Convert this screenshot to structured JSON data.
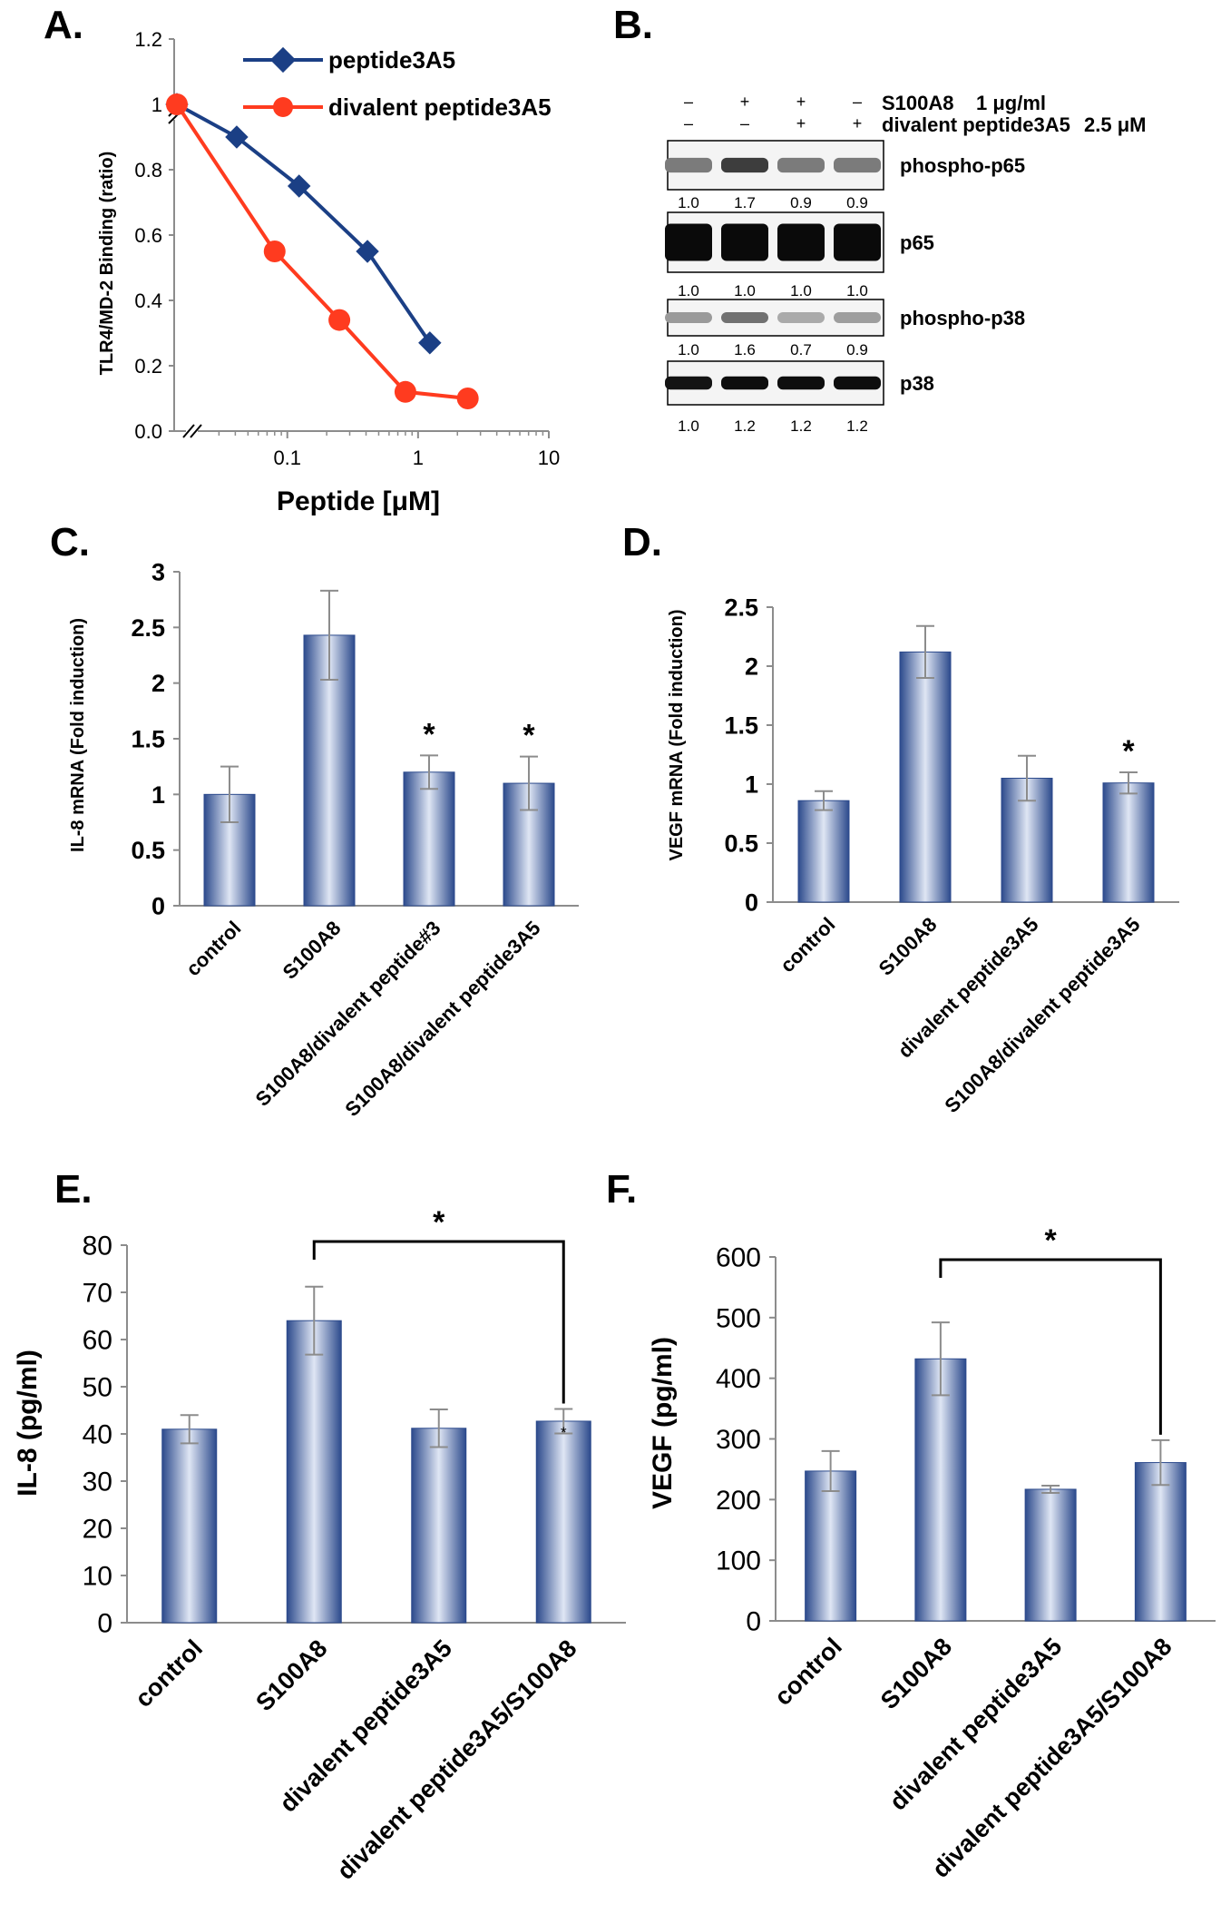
{
  "colors": {
    "bar_dark": "#3e5a9c",
    "bar_light": "#dfe6f4",
    "series_a": "#1b3f85",
    "series_b": "#ff3b1f",
    "axis": "#8c8c8c"
  },
  "panel_letters": [
    "A.",
    "B.",
    "C.",
    "D.",
    "E.",
    "F."
  ],
  "western_blot": {
    "treatments": [
      {
        "label": "S100A8",
        "dose": "1 μg/ml",
        "signs": [
          "–",
          "+",
          "+",
          "–"
        ]
      },
      {
        "label": "divalent peptide3A5",
        "dose": "2.5 μM",
        "signs": [
          "–",
          "–",
          "+",
          "+"
        ]
      }
    ],
    "blots": [
      {
        "label": "phospho-p65",
        "quant": [
          "1.0",
          "1.7",
          "0.9",
          "0.9"
        ],
        "intensity": [
          0.45,
          0.75,
          0.45,
          0.45
        ],
        "saturated": false
      },
      {
        "label": "p65",
        "quant": [
          "1.0",
          "1.0",
          "1.0",
          "1.0"
        ],
        "intensity": [
          1.0,
          1.0,
          1.0,
          1.0
        ],
        "saturated": true
      },
      {
        "label": "phospho-p38",
        "quant": [
          "1.0",
          "1.6",
          "0.7",
          "0.9"
        ],
        "intensity": [
          0.3,
          0.5,
          0.22,
          0.28
        ],
        "saturated": false
      },
      {
        "label": "p38",
        "quant": [
          "1.0",
          "1.2",
          "1.2",
          "1.2"
        ],
        "intensity": [
          0.95,
          0.98,
          0.98,
          0.98
        ],
        "saturated": false
      }
    ]
  },
  "chart_data": [
    {
      "id": "A",
      "type": "line",
      "xscale": "log",
      "xlabel": "Peptide [μM]",
      "ylabel": "TLR4/MD-2 Binding (ratio)",
      "ylim": [
        0.0,
        1.2
      ],
      "yticks": [
        "0.0",
        "0.2",
        "0.4",
        "0.6",
        "0.8",
        "1",
        "1.2"
      ],
      "xticks": [
        "0.1",
        "1",
        "10"
      ],
      "axis_break": true,
      "series": [
        {
          "name": "peptide3A5",
          "marker": "diamond",
          "x": [
            "zero",
            0.041,
            0.123,
            0.41,
            1.23
          ],
          "y": [
            1.0,
            0.9,
            0.75,
            0.55,
            0.27
          ]
        },
        {
          "name": "divalent peptide3A5",
          "marker": "circle",
          "x": [
            "zero",
            0.08,
            0.25,
            0.8,
            2.4
          ],
          "y": [
            1.0,
            0.55,
            0.34,
            0.12,
            0.1
          ]
        }
      ]
    },
    {
      "id": "C",
      "type": "bar",
      "ylabel": "IL-8 mRNA (Fold induction)",
      "ylim": [
        0,
        3
      ],
      "yticks": [
        "0",
        "0.5",
        "1",
        "1.5",
        "2",
        "2.5",
        "3"
      ],
      "categories": [
        "control",
        "S100A8",
        "S100A8/divalent peptide#3",
        "S100A8/divalent peptide3A5"
      ],
      "values": [
        1.0,
        2.43,
        1.2,
        1.1
      ],
      "errors": [
        0.25,
        0.4,
        0.15,
        0.24
      ],
      "stars": [
        "",
        "",
        "*",
        "*"
      ]
    },
    {
      "id": "D",
      "type": "bar",
      "ylabel": "VEGF mRNA (Fold induction)",
      "ylim": [
        0,
        2.5
      ],
      "yticks": [
        "0",
        "0.5",
        "1",
        "1.5",
        "2",
        "2.5"
      ],
      "categories": [
        "control",
        "S100A8",
        "divalent peptide3A5",
        "S100A8/divalent peptide3A5"
      ],
      "values": [
        0.86,
        2.12,
        1.05,
        1.01
      ],
      "errors": [
        0.08,
        0.22,
        0.19,
        0.09
      ],
      "stars": [
        "",
        "",
        "",
        "*"
      ]
    },
    {
      "id": "E",
      "type": "bar",
      "ylabel": "IL-8 (pg/ml)",
      "ylim": [
        0,
        80
      ],
      "yticks": [
        "0",
        "10",
        "20",
        "30",
        "40",
        "50",
        "60",
        "70",
        "80"
      ],
      "categories": [
        "control",
        "S100A8",
        "divalent peptide3A5",
        "divalent peptide3A5/S100A8"
      ],
      "values": [
        41,
        64,
        41.2,
        42.7
      ],
      "errors": [
        3.0,
        7.2,
        4.0,
        2.6
      ],
      "bracket": {
        "from": 1,
        "to": 3,
        "label": "*"
      },
      "stars": [
        "",
        "",
        "",
        "*"
      ]
    },
    {
      "id": "F",
      "type": "bar",
      "ylabel": "VEGF (pg/ml)",
      "ylim": [
        0,
        600
      ],
      "yticks": [
        "0",
        "100",
        "200",
        "300",
        "400",
        "500",
        "600"
      ],
      "categories": [
        "control",
        "S100A8",
        "divalent peptide3A5",
        "divalent peptide3A5/S100A8"
      ],
      "values": [
        247,
        432,
        217,
        261
      ],
      "errors": [
        33,
        60,
        6,
        37
      ],
      "bracket": {
        "from": 1,
        "to": 3,
        "label": "*"
      },
      "stars": [
        "",
        "",
        "",
        ""
      ]
    }
  ]
}
